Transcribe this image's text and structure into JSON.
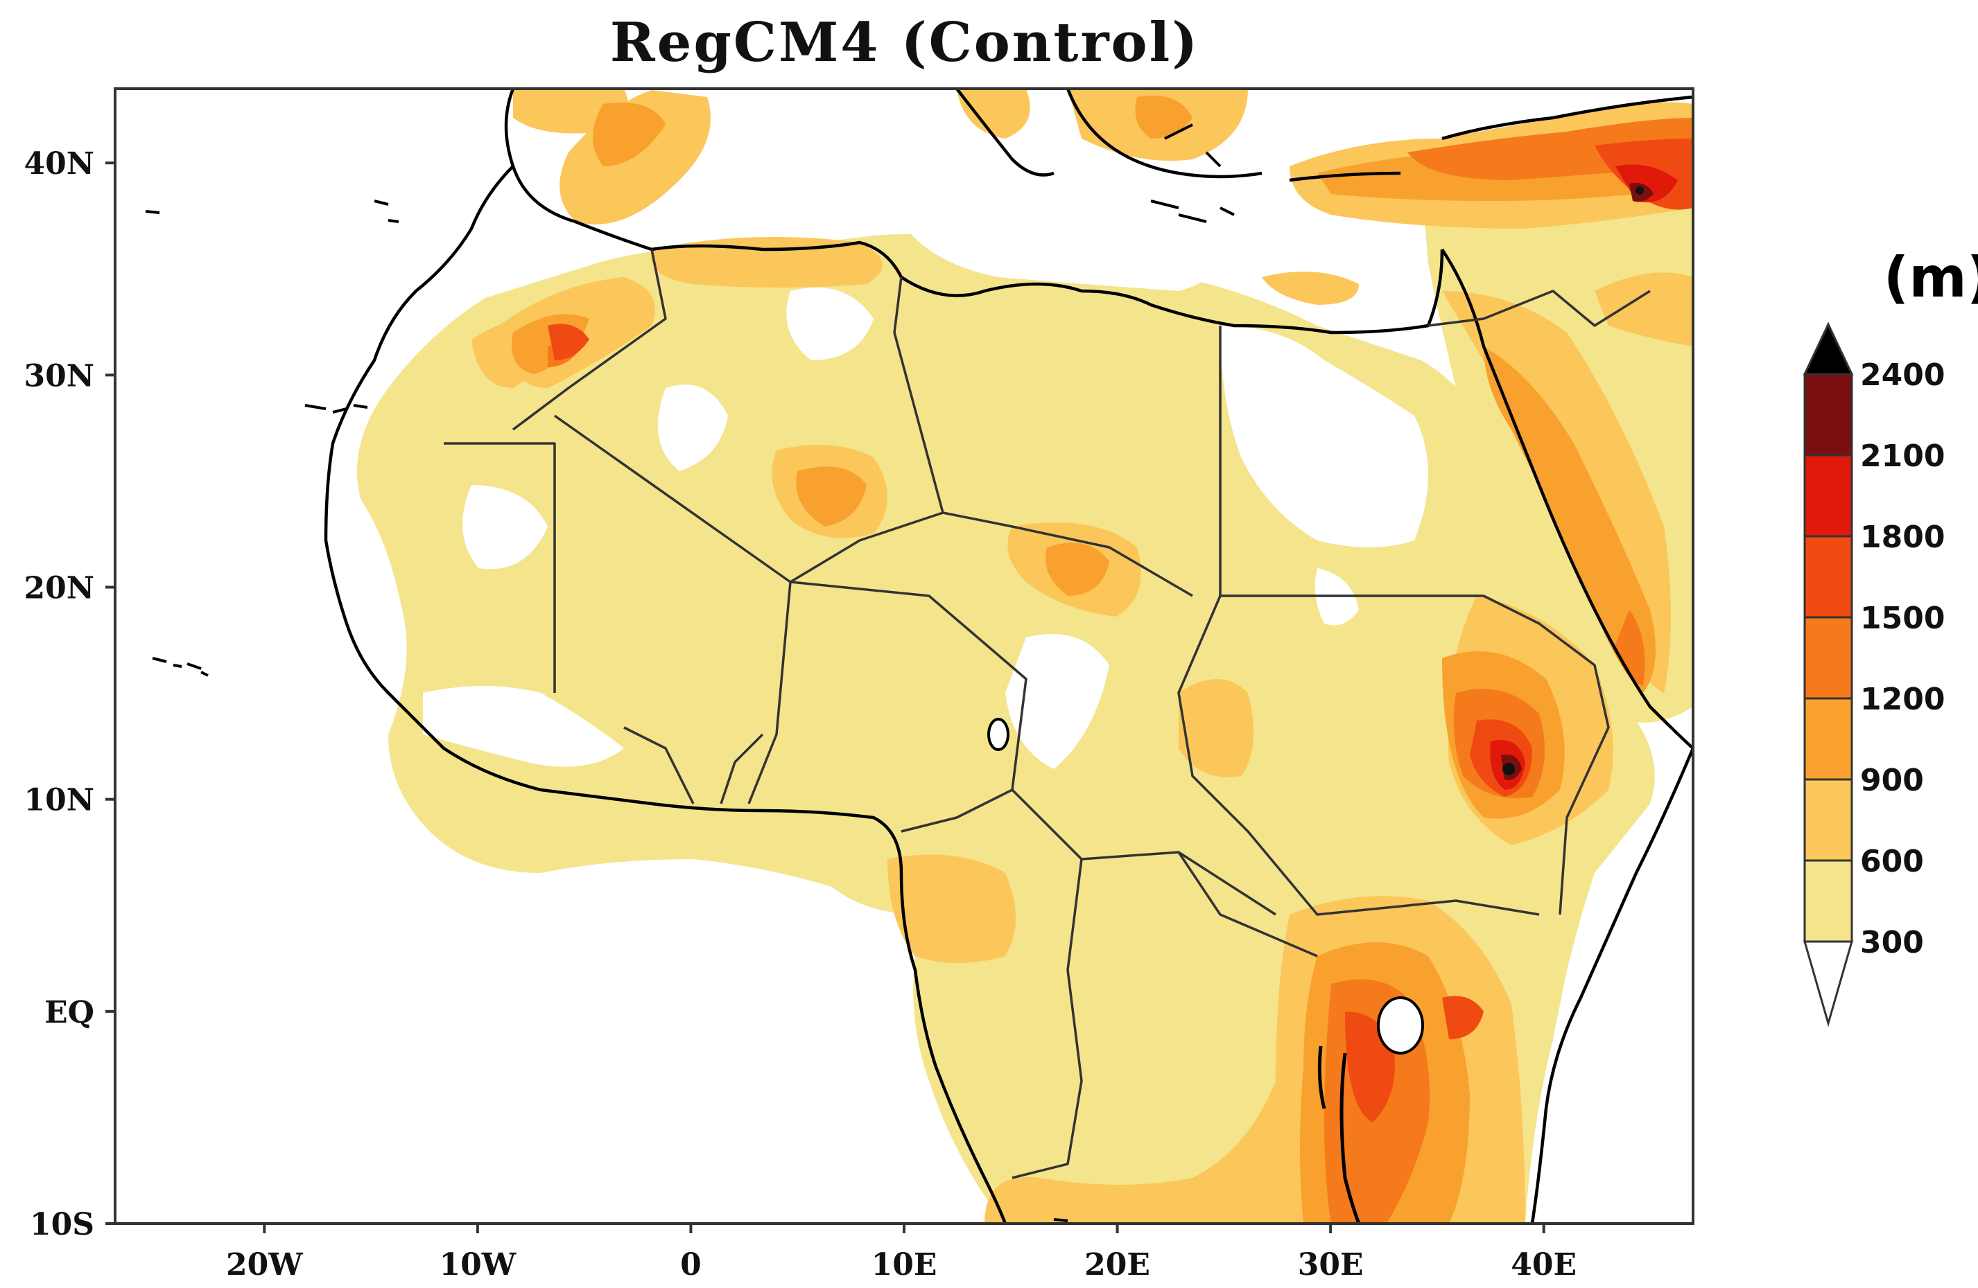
{
  "title": "RegCM4 (Control)",
  "units": "(m)",
  "x_ticks": [
    "20W",
    "10W",
    "0",
    "10E",
    "20E",
    "30E",
    "40E"
  ],
  "y_ticks": [
    "40N",
    "30N",
    "20N",
    "10N",
    "EQ",
    "10S"
  ],
  "colorbar": {
    "labels": [
      "300",
      "600",
      "900",
      "1200",
      "1500",
      "1800",
      "2100",
      "2400"
    ],
    "colors": [
      "#f4e48c",
      "#fbc65a",
      "#f8a12e",
      "#f57a1c",
      "#ef4a12",
      "#e0190b",
      "#7a0f0f",
      "#111111"
    ],
    "below_color": "#ffffff",
    "above_color": "#000000"
  },
  "chart_data": {
    "type": "heatmap",
    "title": "RegCM4 (Control)",
    "units": "m",
    "lon_range": [
      -27,
      47
    ],
    "lat_range": [
      -10,
      43.5
    ],
    "xticks_deg": [
      -20,
      -10,
      0,
      10,
      20,
      30,
      40
    ],
    "yticks_deg": [
      40,
      30,
      20,
      10,
      0,
      -10
    ],
    "levels": [
      300,
      600,
      900,
      1200,
      1500,
      1800,
      2100,
      2400
    ]
  }
}
